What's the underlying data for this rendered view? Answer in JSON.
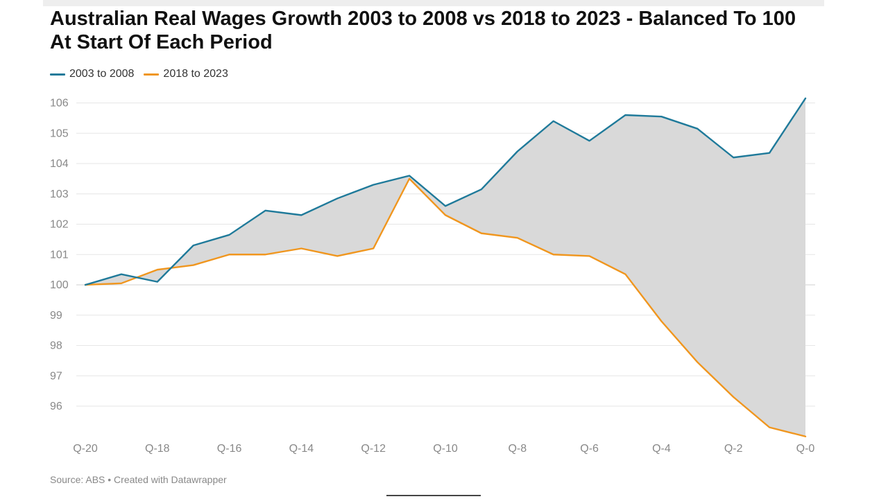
{
  "chart_data": {
    "type": "line",
    "title": "Australian Real Wages Growth 2003 to 2008 vs 2018 to 2023 - Balanced To 100 At Start Of Each Period",
    "xlabel": "",
    "ylabel": "",
    "ylim": [
      95,
      106.2
    ],
    "categories": [
      "Q-20",
      "Q-19",
      "Q-18",
      "Q-17",
      "Q-16",
      "Q-15",
      "Q-14",
      "Q-13",
      "Q-12",
      "Q-11",
      "Q-10",
      "Q-9",
      "Q-8",
      "Q-7",
      "Q-6",
      "Q-5",
      "Q-4",
      "Q-3",
      "Q-2",
      "Q-1",
      "Q-0"
    ],
    "x_tick_labels": [
      "Q-20",
      "Q-18",
      "Q-16",
      "Q-14",
      "Q-12",
      "Q-10",
      "Q-8",
      "Q-6",
      "Q-4",
      "Q-2",
      "Q-0"
    ],
    "y_ticks": [
      96,
      97,
      98,
      99,
      100,
      101,
      102,
      103,
      104,
      105,
      106
    ],
    "grid": true,
    "legend_position": "top-left",
    "series": [
      {
        "name": "2003 to 2008",
        "color": "#1f7a9a",
        "values": [
          100.0,
          100.35,
          100.1,
          101.3,
          101.65,
          102.45,
          102.3,
          102.85,
          103.3,
          103.6,
          102.6,
          103.15,
          104.4,
          105.4,
          104.75,
          105.6,
          105.55,
          105.15,
          104.2,
          104.35,
          106.15
        ]
      },
      {
        "name": "2018 to 2023",
        "color": "#f0961e",
        "values": [
          100.0,
          100.05,
          100.5,
          100.65,
          101.0,
          101.0,
          101.2,
          100.95,
          101.2,
          103.5,
          102.3,
          101.7,
          101.55,
          101.0,
          100.95,
          100.35,
          98.8,
          97.45,
          96.3,
          95.3,
          95.0
        ]
      }
    ],
    "fill_between_color": "#d9d9d9"
  },
  "source_text": "Source: ABS • Created with Datawrapper"
}
